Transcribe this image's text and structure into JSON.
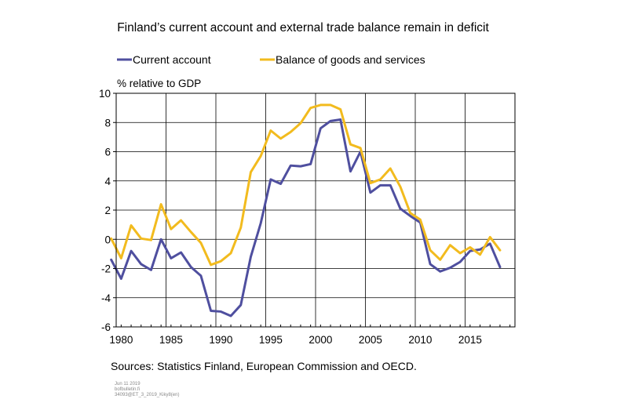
{
  "chart_data": {
    "type": "line",
    "title": "Finland’s current account and external trade balance remain in deficit",
    "ylabel": "% relative to GDP",
    "xlabel": "",
    "xlim": [
      1979.5,
      2019.5
    ],
    "ylim": [
      -6,
      10
    ],
    "y_ticks": [
      10,
      8,
      6,
      4,
      2,
      0,
      -2,
      -4,
      -6
    ],
    "x_ticks": [
      1980,
      1985,
      1990,
      1995,
      2000,
      2005,
      2010,
      2015
    ],
    "grid": true,
    "legend_position": "top",
    "x": [
      1979,
      1980,
      1981,
      1982,
      1983,
      1984,
      1985,
      1986,
      1987,
      1988,
      1989,
      1990,
      1991,
      1992,
      1993,
      1994,
      1995,
      1996,
      1997,
      1998,
      1999,
      2000,
      2001,
      2002,
      2003,
      2004,
      2005,
      2006,
      2007,
      2008,
      2009,
      2010,
      2011,
      2012,
      2013,
      2014,
      2015,
      2016,
      2017,
      2018
    ],
    "series": [
      {
        "name": "Current account",
        "color": "#4f4f9f",
        "values": [
          -1.4,
          -2.7,
          -0.8,
          -1.7,
          -2.1,
          0.0,
          -1.3,
          -0.9,
          -1.9,
          -2.5,
          -4.9,
          -4.95,
          -5.25,
          -4.5,
          -1.2,
          1.1,
          4.1,
          3.8,
          5.05,
          5.0,
          5.15,
          7.6,
          8.1,
          8.2,
          4.65,
          6.0,
          3.2,
          3.7,
          3.7,
          2.1,
          1.6,
          1.15,
          -1.7,
          -2.2,
          -1.95,
          -1.55,
          -0.8,
          -0.7,
          -0.3,
          -1.9
        ]
      },
      {
        "name": "Balance of goods and services",
        "color": "#f2bb1e",
        "values": [
          0.05,
          -1.3,
          0.95,
          0.05,
          -0.05,
          2.4,
          0.7,
          1.3,
          0.5,
          -0.25,
          -1.75,
          -1.5,
          -0.95,
          0.8,
          4.6,
          5.7,
          7.45,
          6.9,
          7.35,
          7.95,
          9.0,
          9.2,
          9.2,
          8.9,
          6.5,
          6.25,
          3.85,
          4.1,
          4.85,
          3.6,
          1.8,
          1.35,
          -0.75,
          -1.4,
          -0.4,
          -0.95,
          -0.55,
          -1.05,
          0.15,
          -0.75
        ]
      }
    ]
  },
  "footer": {
    "sources": "Sources: Statistics Finland, European Commission and OECD.",
    "meta_lines": [
      "Jun 11 2019",
      "bofbulletin.fi",
      "34093@ET_3_2019_Kiky8(en)"
    ]
  }
}
